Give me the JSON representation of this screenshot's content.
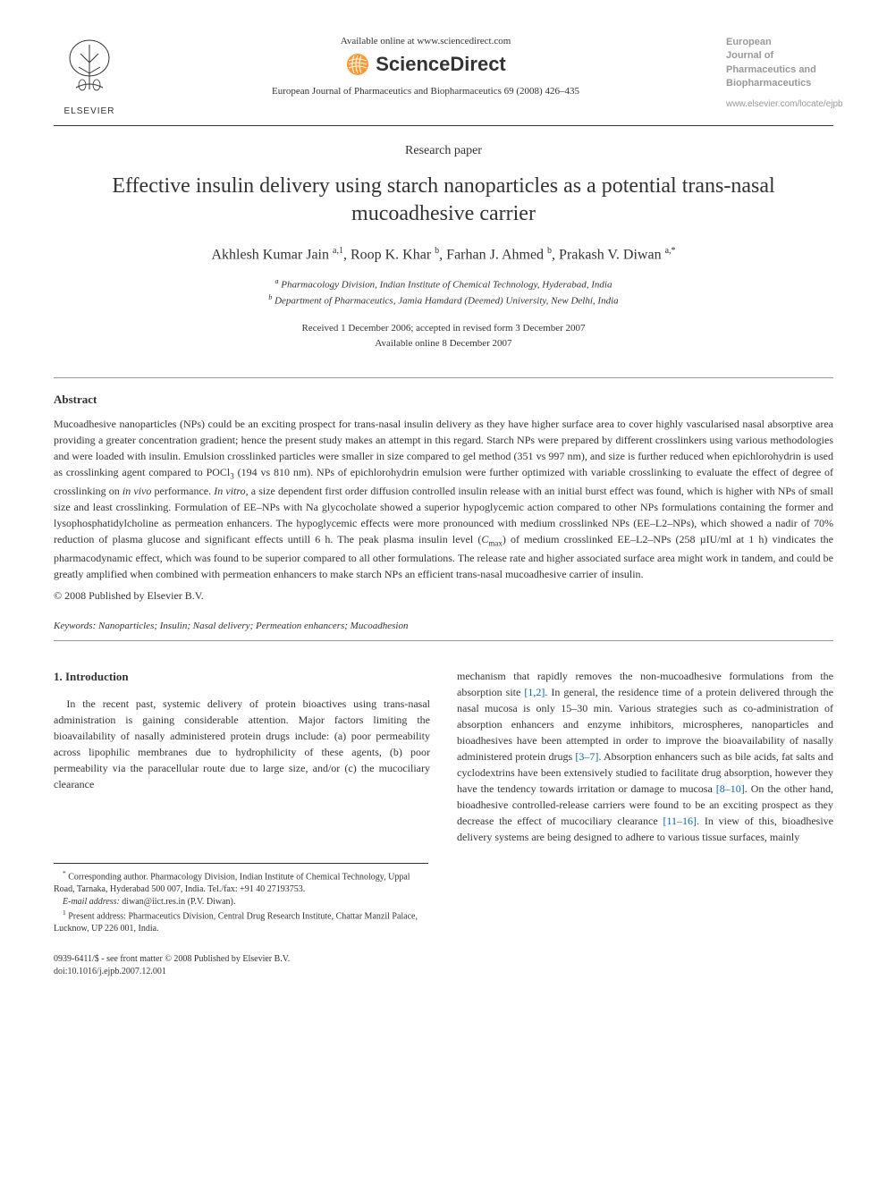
{
  "header": {
    "publisher_name": "ELSEVIER",
    "available_text": "Available online at www.sciencedirect.com",
    "platform_name": "ScienceDirect",
    "citation": "European Journal of Pharmaceutics and Biopharmaceutics 69 (2008) 426–435",
    "journal_cover": {
      "l1": "European",
      "l2": "Journal of",
      "l3": "Pharmaceutics and",
      "l4": "Biopharmaceutics"
    },
    "journal_url": "www.elsevier.com/locate/ejpb"
  },
  "paper": {
    "type": "Research paper",
    "title": "Effective insulin delivery using starch nanoparticles as a potential trans-nasal mucoadhesive carrier",
    "authors_html": "Akhlesh Kumar Jain <sup>a,1</sup>, Roop K. Khar <sup>b</sup>, Farhan J. Ahmed <sup>b</sup>, Prakash V. Diwan <sup>a,*</sup>",
    "affiliations": {
      "a": "Pharmacology Division, Indian Institute of Chemical Technology, Hyderabad, India",
      "b": "Department of Pharmaceutics, Jamia Hamdard (Deemed) University, New Delhi, India"
    },
    "received": "Received 1 December 2006; accepted in revised form 3 December 2007",
    "available": "Available online 8 December 2007"
  },
  "abstract": {
    "heading": "Abstract",
    "text": "Mucoadhesive nanoparticles (NPs) could be an exciting prospect for trans-nasal insulin delivery as they have higher surface area to cover highly vascularised nasal absorptive area providing a greater concentration gradient; hence the present study makes an attempt in this regard. Starch NPs were prepared by different crosslinkers using various methodologies and were loaded with insulin. Emulsion crosslinked particles were smaller in size compared to gel method (351 vs 997 nm), and size is further reduced when epichlorohydrin is used as crosslinking agent compared to POCl₃ (194 vs 810 nm). NPs of epichlorohydrin emulsion were further optimized with variable crosslinking to evaluate the effect of degree of crosslinking on in vivo performance. In vitro, a size dependent first order diffusion controlled insulin release with an initial burst effect was found, which is higher with NPs of small size and least crosslinking. Formulation of EE–NPs with Na glycocholate showed a superior hypoglycemic action compared to other NPs formulations containing the former and lysophosphatidylcholine as permeation enhancers. The hypoglycemic effects were more pronounced with medium crosslinked NPs (EE–L2–NPs), which showed a nadir of 70% reduction of plasma glucose and significant effects untill 6 h. The peak plasma insulin level (Cmax) of medium crosslinked EE–L2–NPs (258 µIU/ml at 1 h) vindicates the pharmacodynamic effect, which was found to be superior compared to all other formulations. The release rate and higher associated surface area might work in tandem, and could be greatly amplified when combined with permeation enhancers to make starch NPs an efficient trans-nasal mucoadhesive carrier of insulin.",
    "copyright": "© 2008 Published by Elsevier B.V."
  },
  "keywords": {
    "label": "Keywords:",
    "list": "Nanoparticles; Insulin; Nasal delivery; Permeation enhancers; Mucoadhesion"
  },
  "introduction": {
    "heading": "1. Introduction",
    "col1_p1": "In the recent past, systemic delivery of protein bioactives using trans-nasal administration is gaining considerable attention. Major factors limiting the bioavailability of nasally administered protein drugs include: (a) poor permeability across lipophilic membranes due to hydrophilicity of these agents, (b) poor permeability via the paracellular route due to large size, and/or (c) the mucociliary clearance",
    "col2_p1": "mechanism that rapidly removes the non-mucoadhesive formulations from the absorption site [1,2]. In general, the residence time of a protein delivered through the nasal mucosa is only 15–30 min. Various strategies such as co-administration of absorption enhancers and enzyme inhibitors, microspheres, nanoparticles and bioadhesives have been attempted in order to improve the bioavailability of nasally administered protein drugs [3–7]. Absorption enhancers such as bile acids, fat salts and cyclodextrins have been extensively studied to facilitate drug absorption, however they have the tendency towards irritation or damage to mucosa [8–10]. On the other hand, bioadhesive controlled-release carriers were found to be an exciting prospect as they decrease the effect of mucociliary clearance [11–16]. In view of this, bioadhesive delivery systems are being designed to adhere to various tissue surfaces, mainly"
  },
  "footnotes": {
    "corresponding": "Corresponding author. Pharmacology Division, Indian Institute of Chemical Technology, Uppal Road, Tarnaka, Hyderabad 500 007, India. Tel./fax: +91 40 27193753.",
    "email_label": "E-mail address:",
    "email": "diwan@iict.res.in",
    "email_person": "(P.V. Diwan).",
    "present": "Present address: Pharmaceutics Division, Central Drug Research Institute, Chattar Manzil Palace, Lucknow, UP 226 001, India."
  },
  "footer": {
    "issn": "0939-6411/$ - see front matter © 2008 Published by Elsevier B.V.",
    "doi": "doi:10.1016/j.ejpb.2007.12.001"
  },
  "colors": {
    "text": "#333333",
    "link": "#0066cc",
    "background": "#ffffff",
    "rule": "#333333",
    "rule_light": "#999999",
    "elsevier_orange": "#ff6600",
    "sd_orange": "#ff9933",
    "cover_gray": "#999999"
  },
  "typography": {
    "body_fontsize": 12,
    "title_fontsize": 24,
    "authors_fontsize": 16,
    "small_fontsize": 11,
    "footnote_fontsize": 10,
    "heading_fontsize": 13
  }
}
